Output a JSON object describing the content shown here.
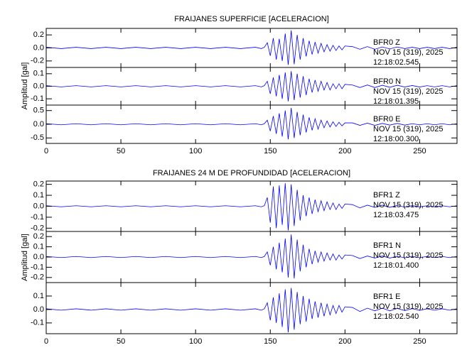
{
  "chart_data": [
    {
      "type": "line",
      "title": "FRAIJANES SUPERFICIE [ACELERACION]",
      "ylabel": "Amplitud [gal]",
      "color": "#0000ff",
      "xlim": [
        0,
        275
      ],
      "xticks": [
        0,
        50,
        100,
        150,
        200,
        250
      ],
      "x": [
        0,
        10,
        20,
        30,
        40,
        50,
        60,
        70,
        80,
        90,
        100,
        110,
        120,
        130,
        140,
        144,
        146,
        148,
        150,
        152,
        154,
        156,
        158,
        160,
        162,
        164,
        166,
        168,
        170,
        172,
        174,
        176,
        178,
        180,
        182,
        184,
        186,
        188,
        190,
        192,
        194,
        196,
        198,
        200,
        205,
        210,
        215,
        220,
        225,
        230,
        235,
        240,
        245,
        250,
        255,
        260,
        265,
        270,
        275
      ],
      "panels": [
        {
          "station": "BFR0   Z",
          "date": "NOV 15 (319), 2025",
          "time": "12:18:02.545",
          "ylim": [
            -0.3,
            0.3
          ],
          "yticks": [
            -0.2,
            {
              "value": 0,
              "label": "0.0"
            },
            0.2
          ],
          "values": [
            0.01,
            -0.01,
            0.01,
            -0.01,
            0.01,
            -0.01,
            0.01,
            -0.01,
            0.01,
            -0.01,
            0.01,
            -0.01,
            0.01,
            -0.01,
            0.01,
            -0.01,
            0.01,
            0.08,
            -0.12,
            0.15,
            -0.18,
            0.14,
            -0.2,
            0.22,
            -0.26,
            0.27,
            -0.25,
            0.2,
            -0.18,
            0.15,
            -0.13,
            0.11,
            -0.1,
            0.09,
            -0.08,
            0.07,
            -0.06,
            0.05,
            -0.05,
            0.04,
            -0.04,
            0.03,
            -0.03,
            0.03,
            0.02,
            -0.02,
            0.02,
            -0.02,
            0.015,
            -0.015,
            0.015,
            -0.01,
            0.01,
            -0.01,
            0.01,
            -0.01,
            0.01,
            -0.01,
            0.01
          ]
        },
        {
          "station": "BFR0   N",
          "date": "NOV 15 (319), 2025",
          "time": "12:18:01.395",
          "ylim": [
            -0.15,
            0.15
          ],
          "yticks": [
            -0.1,
            {
              "value": 0,
              "label": "0.0"
            },
            0.1
          ],
          "values": [
            0.005,
            -0.005,
            0.005,
            -0.005,
            0.005,
            -0.005,
            0.005,
            -0.005,
            0.005,
            -0.005,
            0.005,
            -0.005,
            0.005,
            -0.005,
            0.005,
            -0.005,
            0.005,
            0.04,
            -0.06,
            0.07,
            -0.08,
            0.09,
            -0.1,
            0.11,
            -0.12,
            0.12,
            -0.11,
            0.1,
            -0.09,
            0.08,
            -0.07,
            0.06,
            -0.05,
            0.05,
            -0.04,
            0.04,
            -0.03,
            0.03,
            -0.03,
            0.02,
            -0.02,
            0.02,
            -0.02,
            0.015,
            0.01,
            -0.01,
            0.01,
            -0.01,
            0.008,
            -0.008,
            0.008,
            -0.006,
            0.006,
            -0.006,
            0.005,
            -0.005,
            0.005,
            -0.005,
            0.005
          ]
        },
        {
          "station": "BFR0   E",
          "date": "NOV 15 (319), 2025",
          "time": "12:18:00.300",
          "ylim": [
            -0.7,
            0.7
          ],
          "yticks": [
            -0.5,
            {
              "value": 0,
              "label": "0.0"
            },
            0.5
          ],
          "values": [
            0.02,
            -0.02,
            0.02,
            -0.02,
            0.02,
            -0.02,
            0.02,
            -0.02,
            0.02,
            -0.02,
            0.02,
            -0.02,
            0.02,
            -0.02,
            0.02,
            -0.02,
            0.02,
            0.15,
            -0.25,
            0.3,
            -0.35,
            0.4,
            -0.45,
            0.5,
            -0.55,
            0.6,
            -0.5,
            0.45,
            -0.4,
            0.35,
            -0.3,
            0.25,
            -0.22,
            0.2,
            -0.18,
            0.15,
            -0.13,
            0.12,
            -0.1,
            0.09,
            -0.08,
            0.07,
            -0.06,
            0.05,
            0.05,
            -0.04,
            0.04,
            -0.04,
            0.03,
            -0.03,
            0.03,
            -0.03,
            0.02,
            -0.02,
            0.02,
            -0.02,
            0.02,
            -0.02,
            0.02
          ]
        }
      ]
    },
    {
      "type": "line",
      "title": "FRAIJANES 24 M DE PROFUNDIDAD [ACELERACION]",
      "ylabel": "Amplitud [gal]",
      "color": "#0000ff",
      "xlim": [
        0,
        275
      ],
      "xticks": [
        0,
        50,
        100,
        150,
        200,
        250
      ],
      "x": [
        0,
        10,
        20,
        30,
        40,
        50,
        60,
        70,
        80,
        90,
        100,
        110,
        120,
        130,
        140,
        144,
        146,
        148,
        150,
        152,
        154,
        156,
        158,
        160,
        162,
        164,
        166,
        168,
        170,
        172,
        174,
        176,
        178,
        180,
        182,
        184,
        186,
        188,
        190,
        192,
        194,
        196,
        198,
        200,
        205,
        210,
        215,
        220,
        225,
        230,
        235,
        240,
        245,
        250,
        255,
        260,
        265,
        270,
        275
      ],
      "panels": [
        {
          "station": "BFR1   Z",
          "date": "NOV 15 (319), 2025",
          "time": "12:18:03.475",
          "ylim": [
            -0.23,
            0.23
          ],
          "yticks": [
            -0.2,
            -0.1,
            {
              "value": 0,
              "label": "0.0"
            },
            0.1,
            0.2
          ],
          "values": [
            0.005,
            -0.005,
            0.005,
            -0.005,
            0.005,
            -0.005,
            0.005,
            -0.005,
            0.005,
            -0.005,
            0.005,
            -0.005,
            0.005,
            -0.005,
            0.005,
            -0.005,
            0.005,
            0.08,
            -0.15,
            0.18,
            -0.2,
            0.19,
            -0.17,
            0.21,
            -0.22,
            0.2,
            -0.18,
            0.15,
            -0.13,
            0.1,
            -0.09,
            0.08,
            -0.07,
            0.06,
            -0.05,
            0.05,
            -0.04,
            0.04,
            -0.03,
            0.03,
            -0.03,
            0.02,
            -0.02,
            0.02,
            0.015,
            -0.015,
            0.01,
            -0.01,
            0.01,
            -0.01,
            0.008,
            -0.008,
            0.006,
            -0.006,
            0.005,
            -0.005,
            0.005,
            -0.005,
            0.005
          ]
        },
        {
          "station": "BFR1   N",
          "date": "NOV 15 (319), 2025",
          "time": "12:18:01.400",
          "ylim": [
            -0.25,
            0.25
          ],
          "yticks": [
            -0.2,
            -0.1,
            {
              "value": 0,
              "label": "0.0"
            },
            0.1,
            0.2
          ],
          "values": [
            0.005,
            -0.005,
            0.005,
            -0.005,
            0.005,
            -0.005,
            0.005,
            -0.005,
            0.005,
            -0.005,
            0.005,
            -0.005,
            0.005,
            -0.005,
            0.005,
            -0.005,
            0.005,
            0.05,
            -0.08,
            0.1,
            -0.12,
            0.14,
            -0.15,
            0.18,
            -0.2,
            0.22,
            -0.21,
            0.17,
            -0.14,
            0.12,
            -0.1,
            0.08,
            -0.07,
            0.06,
            -0.05,
            0.05,
            -0.04,
            0.04,
            -0.03,
            0.03,
            -0.03,
            0.02,
            -0.02,
            0.02,
            0.015,
            -0.015,
            0.01,
            -0.01,
            0.01,
            -0.01,
            0.008,
            -0.008,
            0.006,
            -0.006,
            0.005,
            -0.005,
            0.005,
            -0.005,
            0.005
          ]
        },
        {
          "station": "BFR1   E",
          "date": "NOV 15 (319), 2025",
          "time": "12:18:02.540",
          "ylim": [
            -0.18,
            0.2
          ],
          "yticks": [
            -0.1,
            {
              "value": 0,
              "label": "0.0"
            },
            0.1
          ],
          "values": [
            0.005,
            -0.005,
            0.005,
            -0.005,
            0.005,
            -0.005,
            0.005,
            -0.005,
            0.005,
            -0.005,
            0.005,
            -0.005,
            0.005,
            -0.005,
            0.005,
            -0.005,
            0.005,
            0.05,
            -0.08,
            0.09,
            -0.1,
            0.12,
            -0.13,
            0.15,
            -0.17,
            0.16,
            -0.15,
            0.13,
            -0.11,
            0.1,
            -0.09,
            0.08,
            -0.07,
            0.06,
            -0.06,
            0.05,
            -0.05,
            0.04,
            -0.04,
            0.03,
            -0.03,
            0.03,
            -0.02,
            0.02,
            0.015,
            -0.015,
            0.01,
            -0.01,
            0.01,
            -0.01,
            0.008,
            -0.008,
            0.006,
            -0.006,
            0.005,
            -0.005,
            0.005,
            -0.005,
            0.005
          ]
        }
      ]
    }
  ]
}
